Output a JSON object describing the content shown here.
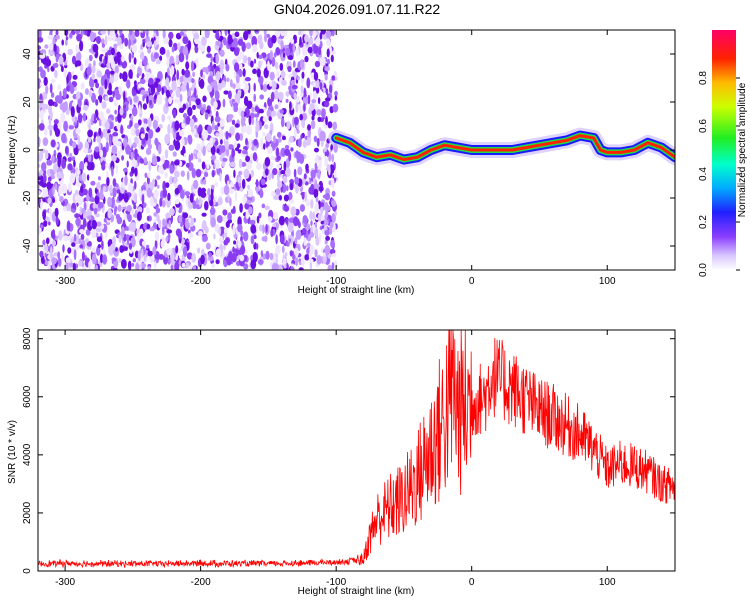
{
  "title": "GN04.2026.091.07.11.R22",
  "colors": {
    "snr_line": "#ff0000",
    "noise_purple": "#7a22e8",
    "background": "#ffffff"
  },
  "chart_data": [
    {
      "type": "heatmap",
      "xlabel": "Height of straight line (km)",
      "ylabel": "Frequency (Hz)",
      "xlim": [
        -320,
        150
      ],
      "ylim": [
        -50,
        50
      ],
      "xticks": [
        -300,
        -200,
        -100,
        0,
        100
      ],
      "xtick_labels": [
        "-300",
        "-200",
        "-100",
        "0",
        "100"
      ],
      "yticks": [
        -40,
        -20,
        0,
        20,
        40
      ],
      "ytick_labels": [
        "-40",
        "-20",
        "0",
        "20",
        "40"
      ],
      "noise_region_x": [
        -320,
        -100
      ],
      "colorbar": {
        "label": "Normalized spectral amplitude",
        "range": [
          0,
          1
        ],
        "ticks": [
          0.0,
          0.2,
          0.4,
          0.6,
          0.8
        ],
        "tick_labels": [
          "0.0",
          "0.2",
          "0.4",
          "0.6",
          "0.8"
        ],
        "colormap": "rainbow"
      },
      "signal_trace": {
        "x": [
          -100,
          -90,
          -80,
          -70,
          -60,
          -50,
          -40,
          -30,
          -20,
          -10,
          0,
          10,
          20,
          30,
          40,
          50,
          60,
          70,
          80,
          90,
          95,
          100,
          110,
          120,
          130,
          140,
          150
        ],
        "y": [
          5,
          3,
          -1,
          -3,
          -2,
          -4,
          -3,
          0,
          2,
          1,
          0,
          0,
          0,
          0,
          1,
          2,
          3,
          4,
          6,
          5,
          0,
          -1,
          -1,
          0,
          3,
          1,
          -3
        ]
      }
    },
    {
      "type": "line",
      "xlabel": "Height of straight line (km)",
      "ylabel": "SNR (10 * v/v)",
      "xlim": [
        -320,
        150
      ],
      "ylim": [
        0,
        8300
      ],
      "xticks": [
        -300,
        -200,
        -100,
        0,
        100
      ],
      "xtick_labels": [
        "-300",
        "-200",
        "-100",
        "0",
        "100"
      ],
      "yticks": [
        0,
        2000,
        4000,
        6000,
        8000
      ],
      "ytick_labels": [
        "0",
        "2000",
        "4000",
        "6000",
        "8000"
      ],
      "series": [
        {
          "x": [
            -320,
            -300,
            -250,
            -200,
            -150,
            -100,
            -90,
            -80,
            -75,
            -70,
            -60,
            -50,
            -40,
            -30,
            -20,
            -15,
            -10,
            0,
            10,
            15,
            20,
            30,
            40,
            50,
            60,
            70,
            80,
            90,
            100,
            110,
            120,
            130,
            140,
            150
          ],
          "values": [
            250,
            260,
            250,
            260,
            250,
            300,
            350,
            400,
            1200,
            1800,
            2200,
            2500,
            3200,
            4200,
            5200,
            6500,
            5500,
            5800,
            6000,
            6800,
            6600,
            6300,
            5900,
            5500,
            5300,
            5000,
            4700,
            4200,
            3500,
            3700,
            3600,
            3400,
            3000,
            2900
          ]
        }
      ]
    }
  ]
}
